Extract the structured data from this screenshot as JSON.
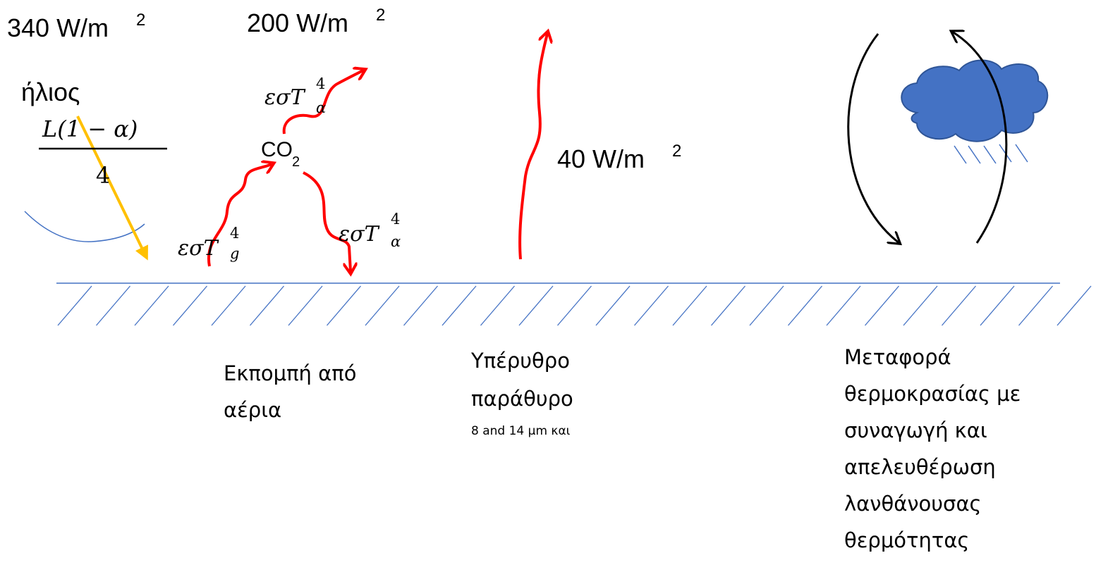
{
  "fluxes": {
    "solar": {
      "text": "340 W/m",
      "sup": "2"
    },
    "gas_up": {
      "text": "200 W/m",
      "sup": "2"
    },
    "window": {
      "text": "40 W/m",
      "sup": "2"
    }
  },
  "sun_label": "ήλιος",
  "formula": {
    "numerator": "L(1 − α)",
    "denominator": "4"
  },
  "co2": {
    "text": "CO",
    "sub": "2"
  },
  "emissions": [
    {
      "text": "εσT",
      "sub": "α",
      "sup": "4"
    },
    {
      "text": "εσT",
      "sub": "g",
      "sup": "4"
    },
    {
      "text": "εσT",
      "sub": "α",
      "sup": "4"
    }
  ],
  "captions": {
    "gas": [
      "Εκπομπή από",
      "αέρια"
    ],
    "window": [
      "Υπέρυθρο",
      "παράθυρο"
    ],
    "window_note": "8 and 14 μm και",
    "convection": [
      "Μεταφορά",
      "θερμοκρασίας με",
      "συναγωγή και",
      "απελευθέρωση",
      "λανθάνουσας",
      "θερμότητας"
    ]
  }
}
